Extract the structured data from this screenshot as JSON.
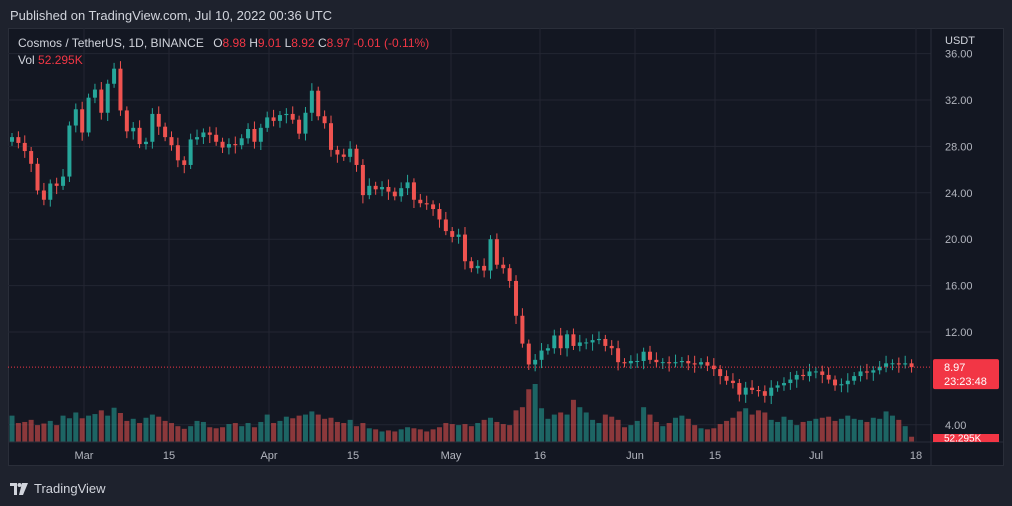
{
  "header": {
    "published": "Published on TradingView.com, Jul 10, 2022 00:36 UTC"
  },
  "legend": {
    "symbol": "Cosmos / TetherUS, 1D, BINANCE",
    "o_label": "O",
    "o_value": "8.98",
    "h_label": "H",
    "h_value": "9.01",
    "l_label": "L",
    "l_value": "8.92",
    "c_label": "C",
    "c_value": "8.97",
    "change": "-0.01 (-0.11%)",
    "vol_label": "Vol",
    "vol_value": "52.295K"
  },
  "footer": {
    "brand": "TradingView"
  },
  "colors": {
    "up": "#26a69a",
    "down": "#ef5350",
    "background": "#131722",
    "grid": "#232632",
    "price_label": "#f23645"
  },
  "chart_data": {
    "type": "candlestick",
    "currency": "USDT",
    "y_ticks": [
      "36.00",
      "32.00",
      "28.00",
      "24.00",
      "20.00",
      "16.00",
      "12.00",
      "4.00"
    ],
    "x_ticks": [
      "Mar",
      "15",
      "Apr",
      "15",
      "May",
      "16",
      "Jun",
      "15",
      "Jul",
      "18"
    ],
    "last_price": "8.97",
    "countdown": "23:23:48",
    "volume_label": "52.295K",
    "grid": true,
    "closes": [
      28.8,
      28.3,
      27.6,
      26.5,
      24.2,
      23.4,
      24.8,
      24.6,
      25.4,
      29.8,
      31.2,
      29.2,
      32.2,
      32.9,
      30.9,
      33.4,
      34.7,
      31.1,
      29.3,
      29.6,
      28.2,
      28.4,
      30.8,
      29.7,
      28.8,
      28.1,
      26.8,
      26.4,
      28.6,
      28.8,
      29.2,
      29.0,
      28.4,
      27.9,
      28.2,
      28.1,
      28.7,
      29.5,
      28.4,
      29.6,
      30.5,
      30.2,
      30.7,
      30.8,
      30.3,
      29.1,
      30.9,
      32.8,
      30.6,
      30.0,
      27.7,
      27.3,
      27.1,
      27.8,
      26.4,
      23.8,
      24.6,
      24.3,
      24.5,
      24.1,
      23.7,
      24.4,
      24.9,
      23.4,
      23.1,
      23.0,
      22.6,
      21.7,
      20.7,
      20.2,
      20.4,
      18.1,
      17.5,
      17.7,
      17.3,
      20.0,
      17.8,
      17.5,
      16.4,
      13.4,
      11.0,
      9.2,
      9.6,
      10.4,
      10.6,
      11.7,
      10.6,
      11.8,
      10.8,
      11.1,
      11.1,
      11.3,
      11.4,
      10.8,
      10.6,
      9.4,
      9.3,
      9.5,
      9.5,
      10.3,
      9.6,
      9.4,
      9.4,
      9.3,
      9.4,
      9.5,
      9.3,
      9.2,
      9.4,
      9.1,
      8.8,
      8.2,
      7.8,
      7.6,
      6.6,
      7.2,
      7.0,
      6.9,
      6.5,
      7.2,
      7.4,
      7.6,
      7.9,
      8.3,
      8.2,
      8.6,
      8.6,
      8.3,
      7.9,
      7.4,
      7.5,
      7.8,
      8.2,
      8.6,
      8.5,
      8.7,
      9.0,
      9.3,
      9.3,
      9.2,
      9.3,
      8.97
    ],
    "volumes": [
      0.5,
      0.36,
      0.38,
      0.42,
      0.32,
      0.35,
      0.4,
      0.32,
      0.5,
      0.45,
      0.56,
      0.45,
      0.5,
      0.53,
      0.6,
      0.5,
      0.65,
      0.55,
      0.4,
      0.44,
      0.36,
      0.46,
      0.52,
      0.48,
      0.4,
      0.36,
      0.3,
      0.25,
      0.3,
      0.4,
      0.38,
      0.28,
      0.26,
      0.28,
      0.34,
      0.36,
      0.3,
      0.36,
      0.28,
      0.38,
      0.52,
      0.36,
      0.4,
      0.48,
      0.45,
      0.5,
      0.52,
      0.58,
      0.52,
      0.44,
      0.46,
      0.38,
      0.36,
      0.42,
      0.3,
      0.36,
      0.26,
      0.24,
      0.2,
      0.22,
      0.2,
      0.24,
      0.28,
      0.26,
      0.24,
      0.2,
      0.24,
      0.28,
      0.36,
      0.34,
      0.32,
      0.34,
      0.3,
      0.36,
      0.42,
      0.46,
      0.38,
      0.34,
      0.32,
      0.6,
      0.66,
      1.0,
      1.1,
      0.64,
      0.44,
      0.52,
      0.56,
      0.52,
      0.8,
      0.66,
      0.56,
      0.42,
      0.36,
      0.52,
      0.48,
      0.42,
      0.28,
      0.32,
      0.4,
      0.66,
      0.52,
      0.38,
      0.3,
      0.36,
      0.46,
      0.5,
      0.44,
      0.32,
      0.26,
      0.24,
      0.26,
      0.34,
      0.4,
      0.46,
      0.58,
      0.64,
      0.52,
      0.6,
      0.56,
      0.42,
      0.38,
      0.48,
      0.42,
      0.32,
      0.38,
      0.4,
      0.44,
      0.46,
      0.48,
      0.4,
      0.44,
      0.5,
      0.44,
      0.42,
      0.38,
      0.46,
      0.44,
      0.58,
      0.5,
      0.42,
      0.3,
      0.1
    ]
  }
}
